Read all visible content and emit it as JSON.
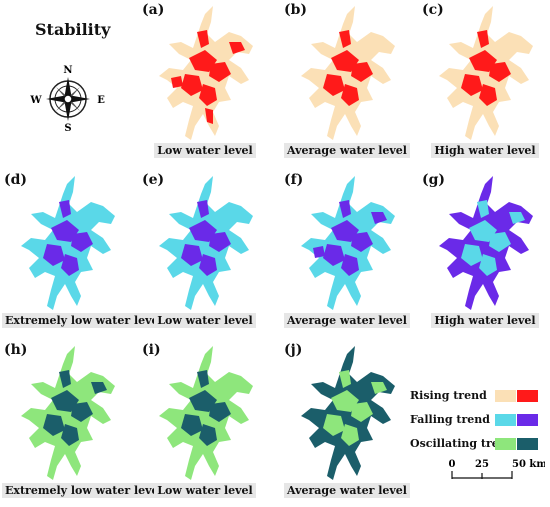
{
  "title": "Stability",
  "compass": {
    "n": "N",
    "s": "S",
    "e": "E",
    "w": "W"
  },
  "colors": {
    "rising_light": "#fbe0b6",
    "rising_dark": "#ff1a1a",
    "falling_light": "#5ad8e8",
    "falling_dark": "#6a2ae8",
    "oscillating_light": "#8ee67c",
    "oscillating_dark": "#1b5e6a"
  },
  "panels": [
    {
      "label": "(a)",
      "caption": "Low water level",
      "scheme": "rising",
      "dark_share": 0.85
    },
    {
      "label": "(b)",
      "caption": "Average water level",
      "scheme": "rising",
      "dark_share": 0.55
    },
    {
      "label": "(c)",
      "caption": "High water level",
      "scheme": "rising",
      "dark_share": 0.6
    },
    {
      "label": "(d)",
      "caption": "Extremely low water level",
      "scheme": "falling",
      "dark_share": 0.6
    },
    {
      "label": "(e)",
      "caption": "Low water level",
      "scheme": "falling",
      "dark_share": 0.6
    },
    {
      "label": "(f)",
      "caption": "Average water level",
      "scheme": "falling",
      "dark_share": 0.75
    },
    {
      "label": "(g)",
      "caption": "High water level",
      "scheme": "falling",
      "dark_share": 0.3
    },
    {
      "label": "(h)",
      "caption": "Extremely low water level",
      "scheme": "oscillating",
      "dark_share": 0.7
    },
    {
      "label": "(i)",
      "caption": "Low water level",
      "scheme": "oscillating",
      "dark_share": 0.6
    },
    {
      "label": "(j)",
      "caption": "Average water level",
      "scheme": "oscillating",
      "dark_share": 0.35
    }
  ],
  "legend": [
    {
      "label": "Rising trend",
      "light": "#fbe0b6",
      "dark": "#ff1a1a"
    },
    {
      "label": "Falling trend",
      "light": "#5ad8e8",
      "dark": "#6a2ae8"
    },
    {
      "label": "Oscillating trend",
      "light": "#8ee67c",
      "dark": "#1b5e6a"
    }
  ],
  "scalebar": {
    "ticks": [
      "0",
      "25",
      "50 km"
    ]
  }
}
